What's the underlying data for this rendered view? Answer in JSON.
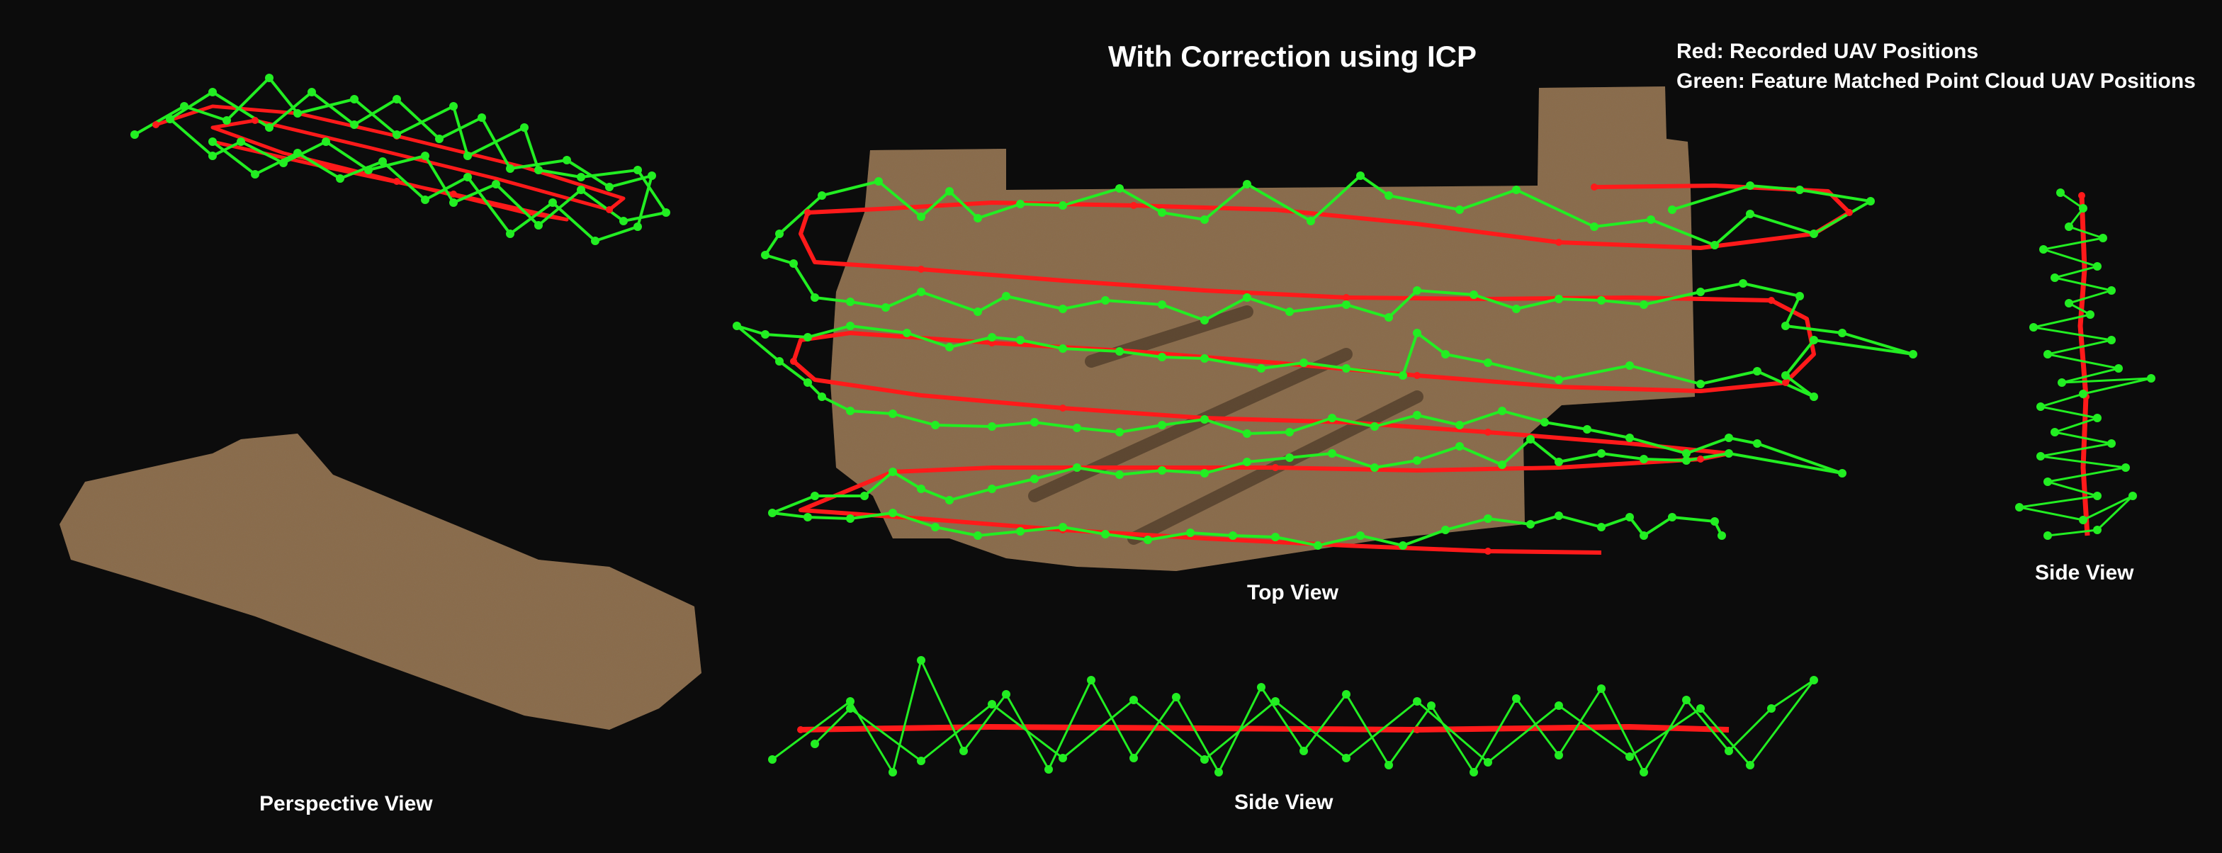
{
  "title": "With Correction using ICP",
  "legend": {
    "red_label": "Red: Recorded UAV Positions",
    "green_label": "Green: Feature Matched Point Cloud UAV Positions"
  },
  "captions": {
    "top_view": "Top View",
    "side_view_right": "Side View",
    "perspective_view": "Perspective View",
    "side_view_bottom": "Side View"
  },
  "colors": {
    "background": "#0c0c0c",
    "recorded_path": "#ff1a1a",
    "matched_path": "#22ee22",
    "terrain_light": "#9c7a56",
    "terrain_dark": "#4a3524",
    "text": "#ffffff"
  }
}
